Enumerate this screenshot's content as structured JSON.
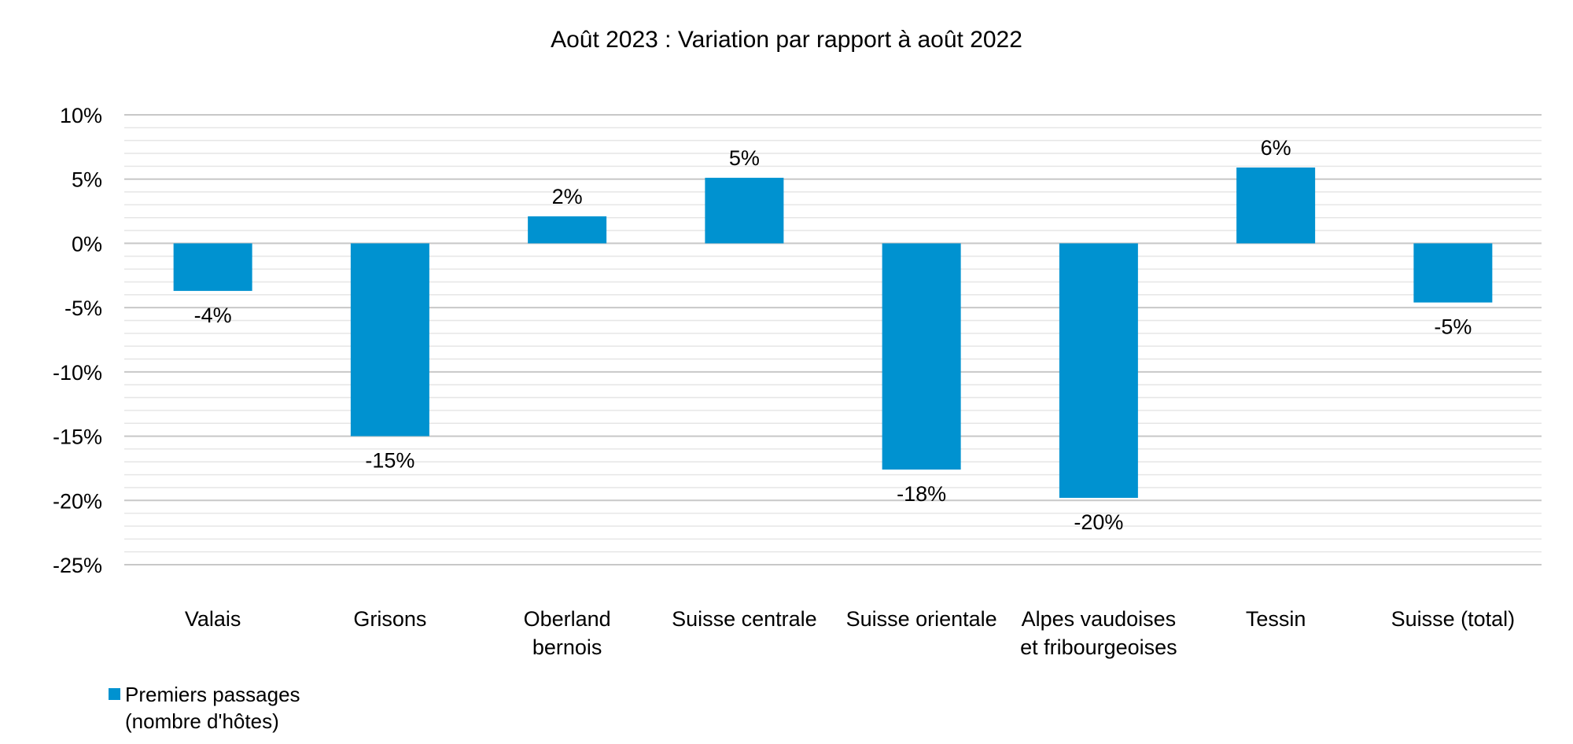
{
  "chart_data": {
    "type": "bar",
    "title": "Août 2023 : Variation par rapport à août 2022",
    "categories": [
      [
        "Valais"
      ],
      [
        "Grisons"
      ],
      [
        "Oberland",
        "bernois"
      ],
      [
        "Suisse centrale"
      ],
      [
        "Suisse orientale"
      ],
      [
        "Alpes vaudoises",
        "et fribourgeoises"
      ],
      [
        "Tessin"
      ],
      [
        "Suisse (total)"
      ]
    ],
    "series": [
      {
        "name": [
          "Premiers passages",
          "(nombre d'hôtes)"
        ],
        "color": "#0092D0",
        "values": [
          -3.7,
          -15.0,
          2.1,
          5.1,
          -17.6,
          -19.8,
          5.9,
          -4.6
        ],
        "labels": [
          "-4%",
          "-15%",
          "2%",
          "5%",
          "-18%",
          "-20%",
          "6%",
          "-5%"
        ]
      }
    ],
    "ylim": [
      -25,
      10
    ],
    "yticks": [
      10,
      5,
      0,
      -5,
      -10,
      -15,
      -20,
      -25
    ],
    "ytick_labels": [
      "10%",
      "5%",
      "0%",
      "-5%",
      "-10%",
      "-15%",
      "-20%",
      "-25%"
    ],
    "minor_grid_step": 1,
    "grid": true,
    "legend": "bottom-left",
    "xlabel": "",
    "ylabel": ""
  }
}
